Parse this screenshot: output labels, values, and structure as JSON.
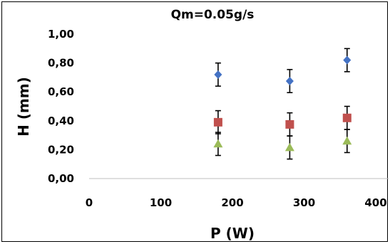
{
  "chart_data": {
    "type": "scatter",
    "title": "Qm=0.05g/s",
    "xlabel": "P (W)",
    "ylabel": "H (mm)",
    "xlim": [
      0,
      400
    ],
    "ylim": [
      0,
      1
    ],
    "x_ticks": [
      "0",
      "100",
      "200",
      "300",
      "400"
    ],
    "y_ticks": [
      "0,00",
      "0,20",
      "0,40",
      "0,60",
      "0,80",
      "1,00"
    ],
    "grid": false,
    "legend": "none",
    "series": [
      {
        "marker": "diamond",
        "color": "#4472c4",
        "points": [
          {
            "x": 180,
            "y": 0.72,
            "err": 0.08
          },
          {
            "x": 280,
            "y": 0.675,
            "err": 0.08
          },
          {
            "x": 360,
            "y": 0.82,
            "err": 0.08
          }
        ]
      },
      {
        "marker": "square",
        "color": "#c0504d",
        "points": [
          {
            "x": 180,
            "y": 0.39,
            "err": 0.08
          },
          {
            "x": 280,
            "y": 0.375,
            "err": 0.08
          },
          {
            "x": 360,
            "y": 0.42,
            "err": 0.08
          }
        ]
      },
      {
        "marker": "triangle",
        "color": "#9bbb59",
        "points": [
          {
            "x": 180,
            "y": 0.24,
            "err": 0.08
          },
          {
            "x": 280,
            "y": 0.215,
            "err": 0.08
          },
          {
            "x": 360,
            "y": 0.26,
            "err": 0.08
          }
        ]
      }
    ]
  }
}
